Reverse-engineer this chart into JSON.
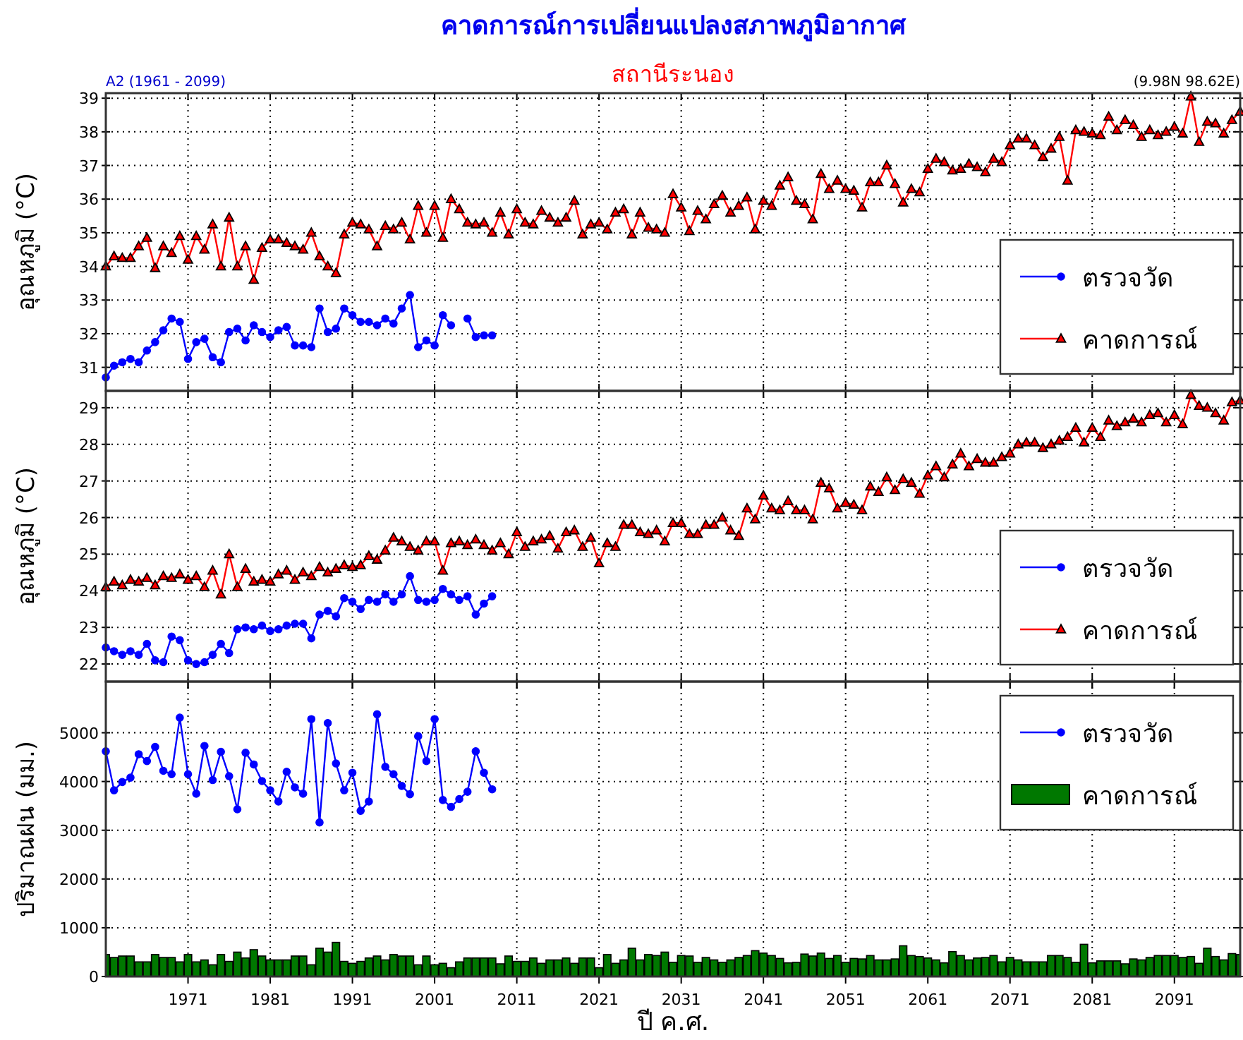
{
  "chart_data": [
    {
      "type": "line",
      "title": "คาดการณ์การเปลี่ยนแปลงสภาพภูมิอากาศ",
      "subtitle": "สถานีระนอง",
      "annotations": [
        "A2 (1961 - 2099)",
        "(9.98N 98.62E)"
      ],
      "ylabel": "อุณหภูมิ (°C)",
      "xlim": [
        1961,
        2099
      ],
      "xticks": [
        1971,
        1981,
        1991,
        2001,
        2011,
        2021,
        2031,
        2041,
        2051,
        2061,
        2071,
        2081,
        2091
      ],
      "ylim": [
        30.3,
        39.15
      ],
      "yticks": [
        31,
        32,
        33,
        34,
        35,
        36,
        37,
        38,
        39
      ],
      "grid": true,
      "legend": "bottom right",
      "tick_labels": "y",
      "x": [
        1961,
        1962,
        1963,
        1964,
        1965,
        1966,
        1967,
        1968,
        1969,
        1970,
        1971,
        1972,
        1973,
        1974,
        1975,
        1976,
        1977,
        1978,
        1979,
        1980,
        1981,
        1982,
        1983,
        1984,
        1985,
        1986,
        1987,
        1988,
        1989,
        1990,
        1991,
        1992,
        1993,
        1994,
        1995,
        1996,
        1997,
        1998,
        1999,
        2000,
        2001,
        2002,
        2003,
        2004,
        2005,
        2006,
        2007,
        2008,
        2009,
        2010,
        2011,
        2012,
        2013,
        2014,
        2015,
        2016,
        2017,
        2018,
        2019,
        2020,
        2021,
        2022,
        2023,
        2024,
        2025,
        2026,
        2027,
        2028,
        2029,
        2030,
        2031,
        2032,
        2033,
        2034,
        2035,
        2036,
        2037,
        2038,
        2039,
        2040,
        2041,
        2042,
        2043,
        2044,
        2045,
        2046,
        2047,
        2048,
        2049,
        2050,
        2051,
        2052,
        2053,
        2054,
        2055,
        2056,
        2057,
        2058,
        2059,
        2060,
        2061,
        2062,
        2063,
        2064,
        2065,
        2066,
        2067,
        2068,
        2069,
        2070,
        2071,
        2072,
        2073,
        2074,
        2075,
        2076,
        2077,
        2078,
        2079,
        2080,
        2081,
        2082,
        2083,
        2084,
        2085,
        2086,
        2087,
        2088,
        2089,
        2090,
        2091,
        2092,
        2093,
        2094,
        2095,
        2096,
        2097,
        2098,
        2099
      ],
      "series": [
        {
          "name": "ตรวจวัด",
          "color": "#0000ff",
          "marker": "circle",
          "x": [
            1961,
            1962,
            1963,
            1964,
            1965,
            1966,
            1967,
            1968,
            1969,
            1970,
            1971,
            1972,
            1973,
            1974,
            1975,
            1976,
            1977,
            1978,
            1979,
            1980,
            1981,
            1982,
            1983,
            1984,
            1985,
            1986,
            1987,
            1988,
            1989,
            1990,
            1991,
            1992,
            1993,
            1994,
            1995,
            1996,
            1997,
            1998,
            1999,
            2000,
            2001,
            2002,
            2003,
            2004,
            2005,
            2006,
            2007,
            2008
          ],
          "values": [
            30.7,
            31.05,
            31.15,
            31.25,
            31.15,
            31.5,
            31.75,
            32.1,
            32.45,
            32.35,
            31.25,
            31.75,
            31.85,
            31.3,
            31.15,
            32.05,
            32.15,
            31.8,
            32.25,
            32.05,
            31.9,
            32.1,
            32.2,
            31.65,
            31.65,
            31.6,
            32.75,
            32.05,
            32.15,
            32.75,
            32.55,
            32.35,
            32.35,
            32.25,
            32.45,
            32.3,
            32.75,
            33.15,
            31.6,
            31.8,
            31.65,
            32.55,
            32.25,
            null,
            32.45,
            31.9,
            31.95,
            31.95
          ]
        },
        {
          "name": "คาดการณ์",
          "color": "#ff0000",
          "marker": "triangle",
          "values": [
            34.0,
            34.3,
            34.25,
            34.25,
            34.6,
            34.85,
            33.95,
            34.6,
            34.4,
            34.9,
            34.2,
            34.9,
            34.5,
            35.25,
            34.0,
            35.45,
            34.0,
            34.6,
            33.6,
            34.55,
            34.8,
            34.8,
            34.7,
            34.6,
            34.5,
            35.0,
            34.3,
            34.0,
            33.8,
            34.95,
            35.3,
            35.25,
            35.1,
            34.6,
            35.2,
            35.1,
            35.3,
            34.8,
            35.8,
            35.0,
            35.8,
            34.85,
            36.0,
            35.7,
            35.3,
            35.25,
            35.3,
            35.0,
            35.6,
            34.95,
            35.7,
            35.3,
            35.25,
            35.65,
            35.45,
            35.3,
            35.45,
            35.95,
            34.95,
            35.25,
            35.3,
            35.1,
            35.6,
            35.7,
            34.95,
            35.6,
            35.15,
            35.1,
            35.0,
            36.15,
            35.75,
            35.05,
            35.65,
            35.4,
            35.85,
            36.1,
            35.6,
            35.8,
            36.05,
            35.1,
            35.95,
            35.8,
            36.4,
            36.65,
            35.95,
            35.85,
            35.4,
            36.75,
            36.3,
            36.55,
            36.3,
            36.25,
            35.75,
            36.5,
            36.5,
            37.0,
            36.45,
            35.9,
            36.3,
            36.2,
            36.9,
            37.2,
            37.1,
            36.85,
            36.9,
            37.05,
            36.95,
            36.8,
            37.2,
            37.1,
            37.6,
            37.8,
            37.8,
            37.6,
            37.25,
            37.5,
            37.85,
            36.55,
            38.05,
            38.0,
            37.95,
            37.9,
            38.45,
            38.05,
            38.35,
            38.2,
            37.85,
            38.05,
            37.9,
            38.0,
            38.15,
            37.95,
            39.05,
            37.7,
            38.3,
            38.25,
            37.95,
            38.35,
            38.6
          ]
        }
      ]
    },
    {
      "type": "line",
      "ylabel": "อุณหภูมิ (°C)",
      "xlim": [
        1961,
        2099
      ],
      "xticks": [
        1971,
        1981,
        1991,
        2001,
        2011,
        2021,
        2031,
        2041,
        2051,
        2061,
        2071,
        2081,
        2091
      ],
      "ylim": [
        21.52,
        29.46
      ],
      "yticks": [
        22,
        23,
        24,
        25,
        26,
        27,
        28,
        29
      ],
      "grid": true,
      "legend": "bottom right",
      "tick_labels": "y",
      "x": [
        1961,
        1962,
        1963,
        1964,
        1965,
        1966,
        1967,
        1968,
        1969,
        1970,
        1971,
        1972,
        1973,
        1974,
        1975,
        1976,
        1977,
        1978,
        1979,
        1980,
        1981,
        1982,
        1983,
        1984,
        1985,
        1986,
        1987,
        1988,
        1989,
        1990,
        1991,
        1992,
        1993,
        1994,
        1995,
        1996,
        1997,
        1998,
        1999,
        2000,
        2001,
        2002,
        2003,
        2004,
        2005,
        2006,
        2007,
        2008,
        2009,
        2010,
        2011,
        2012,
        2013,
        2014,
        2015,
        2016,
        2017,
        2018,
        2019,
        2020,
        2021,
        2022,
        2023,
        2024,
        2025,
        2026,
        2027,
        2028,
        2029,
        2030,
        2031,
        2032,
        2033,
        2034,
        2035,
        2036,
        2037,
        2038,
        2039,
        2040,
        2041,
        2042,
        2043,
        2044,
        2045,
        2046,
        2047,
        2048,
        2049,
        2050,
        2051,
        2052,
        2053,
        2054,
        2055,
        2056,
        2057,
        2058,
        2059,
        2060,
        2061,
        2062,
        2063,
        2064,
        2065,
        2066,
        2067,
        2068,
        2069,
        2070,
        2071,
        2072,
        2073,
        2074,
        2075,
        2076,
        2077,
        2078,
        2079,
        2080,
        2081,
        2082,
        2083,
        2084,
        2085,
        2086,
        2087,
        2088,
        2089,
        2090,
        2091,
        2092,
        2093,
        2094,
        2095,
        2096,
        2097,
        2098,
        2099
      ],
      "series": [
        {
          "name": "ตรวจวัด",
          "color": "#0000ff",
          "marker": "circle",
          "x": [
            1961,
            1962,
            1963,
            1964,
            1965,
            1966,
            1967,
            1968,
            1969,
            1970,
            1971,
            1972,
            1973,
            1974,
            1975,
            1976,
            1977,
            1978,
            1979,
            1980,
            1981,
            1982,
            1983,
            1984,
            1985,
            1986,
            1987,
            1988,
            1989,
            1990,
            1991,
            1992,
            1993,
            1994,
            1995,
            1996,
            1997,
            1998,
            1999,
            2000,
            2001,
            2002,
            2003,
            2004,
            2005,
            2006,
            2007,
            2008
          ],
          "values": [
            22.45,
            22.35,
            22.25,
            22.35,
            22.25,
            22.55,
            22.1,
            22.05,
            22.75,
            22.65,
            22.1,
            22.0,
            22.05,
            22.25,
            22.55,
            22.3,
            22.95,
            23.0,
            22.95,
            23.05,
            22.9,
            22.95,
            23.05,
            23.1,
            23.1,
            22.7,
            23.35,
            23.45,
            23.3,
            23.8,
            23.7,
            23.5,
            23.75,
            23.7,
            23.9,
            23.7,
            23.9,
            24.4,
            23.75,
            23.7,
            23.75,
            24.05,
            23.9,
            23.75,
            23.85,
            23.35,
            23.65,
            23.85
          ]
        },
        {
          "name": "คาดการณ์",
          "color": "#ff0000",
          "marker": "triangle",
          "values": [
            24.1,
            24.25,
            24.15,
            24.3,
            24.25,
            24.35,
            24.15,
            24.4,
            24.35,
            24.45,
            24.3,
            24.4,
            24.1,
            24.55,
            23.9,
            25.0,
            24.1,
            24.6,
            24.25,
            24.3,
            24.25,
            24.45,
            24.55,
            24.3,
            24.5,
            24.4,
            24.65,
            24.5,
            24.6,
            24.7,
            24.65,
            24.7,
            24.95,
            24.85,
            25.1,
            25.45,
            25.35,
            25.2,
            25.1,
            25.35,
            25.35,
            24.55,
            25.3,
            25.35,
            25.25,
            25.4,
            25.25,
            25.1,
            25.3,
            25.0,
            25.6,
            25.2,
            25.35,
            25.4,
            25.5,
            25.15,
            25.6,
            25.65,
            25.2,
            25.45,
            24.75,
            25.3,
            25.2,
            25.8,
            25.8,
            25.6,
            25.55,
            25.65,
            25.35,
            25.85,
            25.85,
            25.55,
            25.55,
            25.8,
            25.8,
            26.0,
            25.65,
            25.5,
            26.25,
            25.95,
            26.6,
            26.25,
            26.2,
            26.45,
            26.2,
            26.2,
            25.95,
            26.95,
            26.8,
            26.25,
            26.4,
            26.35,
            26.2,
            26.85,
            26.7,
            27.1,
            26.75,
            27.05,
            26.95,
            26.65,
            27.15,
            27.4,
            27.1,
            27.45,
            27.75,
            27.4,
            27.6,
            27.5,
            27.5,
            27.65,
            27.75,
            28.0,
            28.05,
            28.05,
            27.9,
            28.0,
            28.1,
            28.2,
            28.45,
            28.05,
            28.45,
            28.2,
            28.65,
            28.5,
            28.6,
            28.7,
            28.6,
            28.8,
            28.85,
            28.6,
            28.8,
            28.55,
            29.35,
            29.05,
            29.0,
            28.85,
            28.65,
            29.15,
            29.2
          ]
        }
      ]
    },
    {
      "type": "bar",
      "ylabel": "ปริมาณฝน (มม.)",
      "xlabel": "ปี ค.ศ.",
      "xlim": [
        1961,
        2099
      ],
      "xticks": [
        1971,
        1981,
        1991,
        2001,
        2011,
        2021,
        2031,
        2041,
        2051,
        2061,
        2071,
        2081,
        2091
      ],
      "ylim": [
        0,
        6050
      ],
      "yticks": [
        0,
        1000,
        2000,
        3000,
        4000,
        5000
      ],
      "grid": true,
      "legend": "top right",
      "x": [
        1961,
        1962,
        1963,
        1964,
        1965,
        1966,
        1967,
        1968,
        1969,
        1970,
        1971,
        1972,
        1973,
        1974,
        1975,
        1976,
        1977,
        1978,
        1979,
        1980,
        1981,
        1982,
        1983,
        1984,
        1985,
        1986,
        1987,
        1988,
        1989,
        1990,
        1991,
        1992,
        1993,
        1994,
        1995,
        1996,
        1997,
        1998,
        1999,
        2000,
        2001,
        2002,
        2003,
        2004,
        2005,
        2006,
        2007,
        2008,
        2009,
        2010,
        2011,
        2012,
        2013,
        2014,
        2015,
        2016,
        2017,
        2018,
        2019,
        2020,
        2021,
        2022,
        2023,
        2024,
        2025,
        2026,
        2027,
        2028,
        2029,
        2030,
        2031,
        2032,
        2033,
        2034,
        2035,
        2036,
        2037,
        2038,
        2039,
        2040,
        2041,
        2042,
        2043,
        2044,
        2045,
        2046,
        2047,
        2048,
        2049,
        2050,
        2051,
        2052,
        2053,
        2054,
        2055,
        2056,
        2057,
        2058,
        2059,
        2060,
        2061,
        2062,
        2063,
        2064,
        2065,
        2066,
        2067,
        2068,
        2069,
        2070,
        2071,
        2072,
        2073,
        2074,
        2075,
        2076,
        2077,
        2078,
        2079,
        2080,
        2081,
        2082,
        2083,
        2084,
        2085,
        2086,
        2087,
        2088,
        2089,
        2090,
        2091,
        2092,
        2093,
        2094,
        2095,
        2096,
        2097,
        2098,
        2099
      ],
      "series": [
        {
          "name": "ตรวจวัด",
          "type": "line",
          "color": "#0000ff",
          "marker": "circle",
          "x": [
            1961,
            1962,
            1963,
            1964,
            1965,
            1966,
            1967,
            1968,
            1969,
            1970,
            1971,
            1972,
            1973,
            1974,
            1975,
            1976,
            1977,
            1978,
            1979,
            1980,
            1981,
            1982,
            1983,
            1984,
            1985,
            1986,
            1987,
            1988,
            1989,
            1990,
            1991,
            1992,
            1993,
            1994,
            1995,
            1996,
            1997,
            1998,
            1999,
            2000,
            2001,
            2002,
            2003,
            2004,
            2005,
            2006,
            2007,
            2008
          ],
          "values": [
            4620,
            3820,
            3990,
            4080,
            4560,
            4420,
            4710,
            4220,
            4150,
            5310,
            4150,
            3750,
            4730,
            4030,
            4610,
            4110,
            3430,
            4590,
            4350,
            4010,
            3820,
            3590,
            4200,
            3880,
            3750,
            5280,
            3160,
            5200,
            4370,
            3820,
            4180,
            3400,
            3590,
            5380,
            4300,
            4150,
            3910,
            3740,
            4930,
            4420,
            5280,
            3620,
            3480,
            3640,
            3790,
            4620,
            4180,
            3840
          ]
        },
        {
          "name": "คาดการณ์",
          "color": "#007800",
          "values": [
            450,
            390,
            420,
            420,
            300,
            300,
            450,
            390,
            390,
            300,
            450,
            300,
            340,
            240,
            450,
            310,
            500,
            380,
            550,
            420,
            340,
            340,
            340,
            420,
            420,
            240,
            580,
            500,
            700,
            310,
            270,
            310,
            380,
            420,
            340,
            450,
            420,
            420,
            240,
            420,
            240,
            270,
            180,
            300,
            380,
            380,
            380,
            380,
            260,
            420,
            310,
            310,
            380,
            270,
            340,
            340,
            380,
            270,
            380,
            380,
            180,
            450,
            270,
            340,
            580,
            340,
            450,
            430,
            500,
            290,
            430,
            420,
            290,
            390,
            340,
            290,
            340,
            390,
            430,
            530,
            480,
            430,
            370,
            280,
            290,
            460,
            420,
            480,
            370,
            430,
            290,
            370,
            360,
            430,
            340,
            340,
            360,
            630,
            430,
            410,
            380,
            340,
            280,
            510,
            430,
            340,
            380,
            390,
            430,
            300,
            390,
            340,
            300,
            300,
            300,
            430,
            430,
            390,
            290,
            660,
            280,
            320,
            320,
            320,
            260,
            360,
            340,
            390,
            430,
            430,
            430,
            390,
            410,
            270,
            580,
            410,
            340,
            470,
            450
          ]
        }
      ]
    }
  ]
}
